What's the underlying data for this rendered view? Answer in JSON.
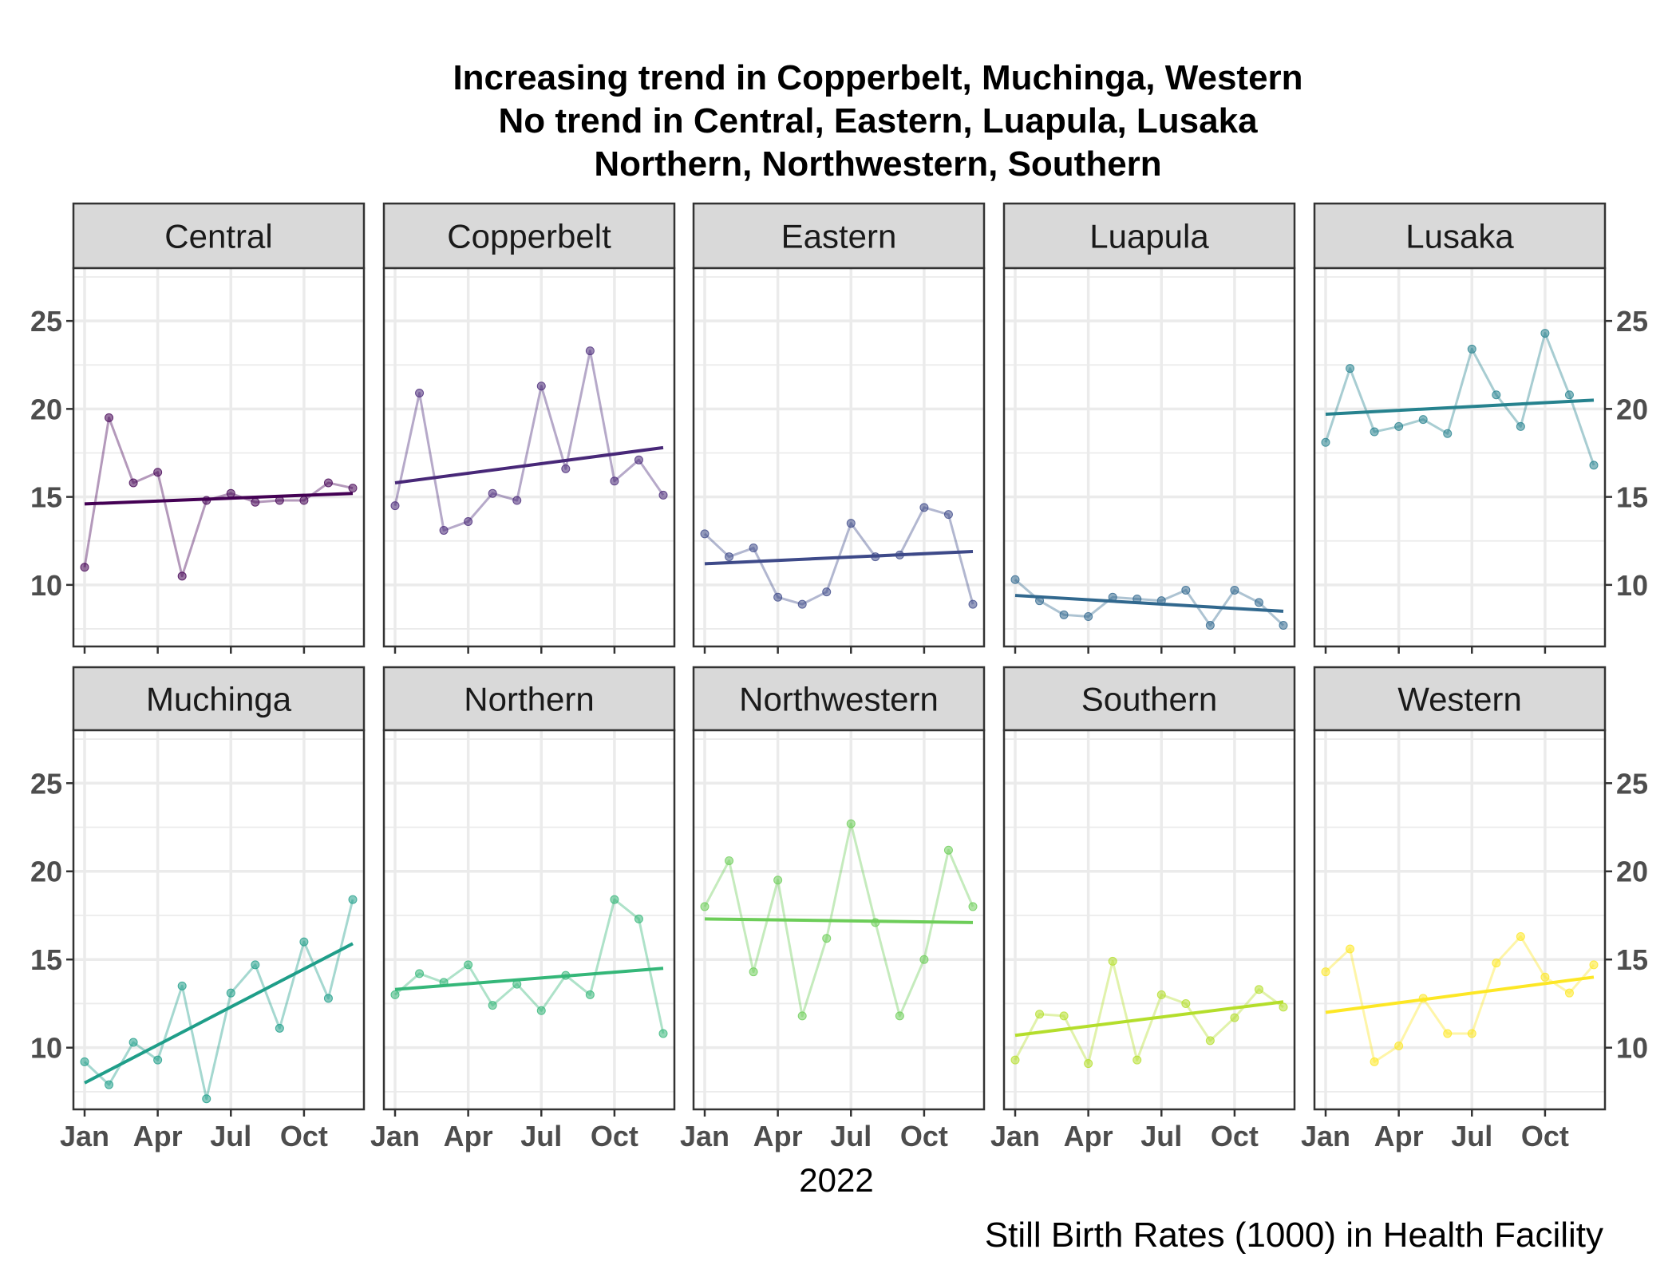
{
  "title": {
    "lines": [
      "Increasing trend in Copperbelt, Muchinga, Western",
      "No trend in Central, Eastern, Luapula, Lusaka",
      "Northern, Northwestern, Southern"
    ]
  },
  "caption": "Still Birth Rates (1000) in Health Facility",
  "chart_data": {
    "type": "line",
    "layout": "facet-grid",
    "facet_rows": 2,
    "facet_cols": 5,
    "xlabel": "2022",
    "ylabel": "",
    "x": [
      "Jan",
      "Feb",
      "Mar",
      "Apr",
      "May",
      "Jun",
      "Jul",
      "Aug",
      "Sep",
      "Oct",
      "Nov",
      "Dec"
    ],
    "x_ticks": [
      "Jan",
      "Apr",
      "Jul",
      "Oct"
    ],
    "y_ticks": [
      10,
      15,
      20,
      25
    ],
    "ylim": [
      6.5,
      28
    ],
    "grid": true,
    "legend": "none",
    "series": [
      {
        "name": "Central",
        "color": "#440154",
        "values": [
          11.0,
          19.5,
          15.8,
          16.4,
          10.5,
          14.8,
          15.2,
          14.7,
          14.8,
          14.8,
          15.8,
          15.5
        ],
        "trend": [
          14.6,
          15.2
        ]
      },
      {
        "name": "Copperbelt",
        "color": "#482878",
        "values": [
          14.5,
          20.9,
          13.1,
          13.6,
          15.2,
          14.8,
          21.3,
          16.6,
          23.3,
          15.9,
          17.1,
          15.1
        ],
        "trend": [
          15.8,
          17.8
        ]
      },
      {
        "name": "Eastern",
        "color": "#3E4A89",
        "values": [
          12.9,
          11.6,
          12.1,
          9.3,
          8.9,
          9.6,
          13.5,
          11.6,
          11.7,
          14.4,
          14.0,
          8.9
        ],
        "trend": [
          11.2,
          11.9
        ]
      },
      {
        "name": "Luapula",
        "color": "#31688E",
        "values": [
          10.3,
          9.1,
          8.3,
          8.2,
          9.3,
          9.2,
          9.1,
          9.7,
          7.7,
          9.7,
          9.0,
          7.7
        ],
        "trend": [
          9.4,
          8.5
        ]
      },
      {
        "name": "Lusaka",
        "color": "#26828E",
        "values": [
          18.1,
          22.3,
          18.7,
          19.0,
          19.4,
          18.6,
          23.4,
          20.8,
          19.0,
          24.3,
          20.8,
          16.8
        ],
        "trend": [
          19.7,
          20.5
        ]
      },
      {
        "name": "Muchinga",
        "color": "#1F9E89",
        "values": [
          9.2,
          7.9,
          10.3,
          9.3,
          13.5,
          7.1,
          13.1,
          14.7,
          11.1,
          16.0,
          12.8,
          18.4
        ],
        "trend": [
          8.0,
          15.9
        ]
      },
      {
        "name": "Northern",
        "color": "#35B779",
        "values": [
          13.0,
          14.2,
          13.7,
          14.7,
          12.4,
          13.6,
          12.1,
          14.1,
          13.0,
          18.4,
          17.3,
          10.8
        ],
        "trend": [
          13.3,
          14.5
        ]
      },
      {
        "name": "Northwestern",
        "color": "#6DCD59",
        "values": [
          18.0,
          20.6,
          14.3,
          19.5,
          11.8,
          16.2,
          22.7,
          17.1,
          11.8,
          15.0,
          21.2,
          18.0
        ],
        "trend": [
          17.3,
          17.1
        ]
      },
      {
        "name": "Southern",
        "color": "#B4DE2C",
        "values": [
          9.3,
          11.9,
          11.8,
          9.1,
          14.9,
          9.3,
          13.0,
          12.5,
          10.4,
          11.7,
          13.3,
          12.3
        ],
        "trend": [
          10.7,
          12.6
        ]
      },
      {
        "name": "Western",
        "color": "#FDE725",
        "values": [
          14.3,
          15.6,
          9.2,
          10.1,
          12.8,
          10.8,
          10.8,
          14.8,
          16.3,
          14.0,
          13.1,
          14.7
        ],
        "trend": [
          12.0,
          14.0
        ]
      }
    ]
  }
}
